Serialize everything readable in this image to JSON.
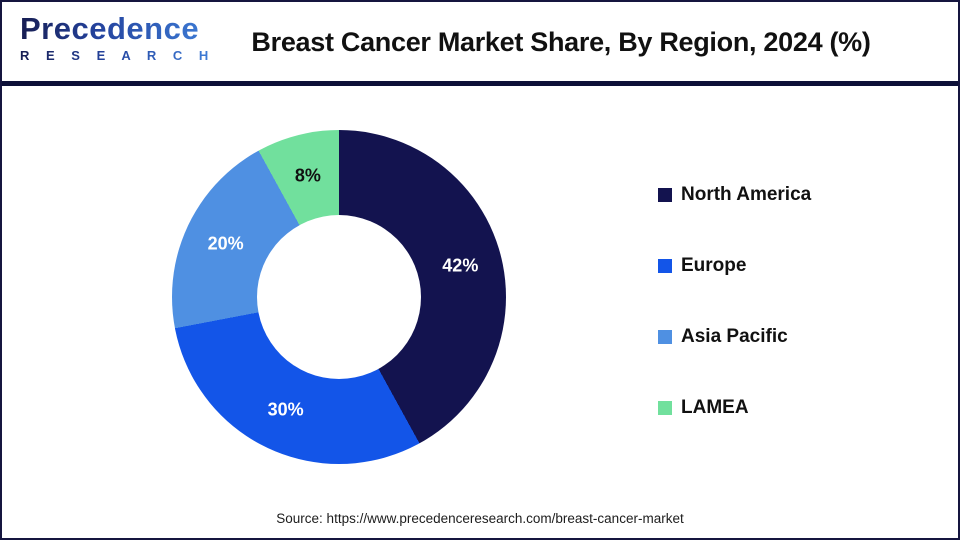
{
  "header": {
    "logo_word": "Precedence",
    "logo_sub": "R E S E A R C H",
    "title": "Breast Cancer Market Share, By Region, 2024 (%)"
  },
  "chart_data": {
    "type": "pie",
    "subtype": "donut",
    "title": "Breast Cancer Market Share, By Region, 2024 (%)",
    "categories": [
      "North America",
      "Europe",
      "Asia Pacific",
      "LAMEA"
    ],
    "values": [
      42,
      30,
      20,
      8
    ],
    "data_labels": [
      "42%",
      "30%",
      "20%",
      "8%"
    ],
    "colors": [
      "#13134F",
      "#1355E8",
      "#4F90E2",
      "#71E09D"
    ],
    "data_label_colors": [
      "#ffffff",
      "#ffffff",
      "#ffffff",
      "#111111"
    ],
    "start_angle_deg": 0,
    "direction": "clockwise",
    "donut_hole_ratio": 0.49,
    "legend_position": "right"
  },
  "footer": {
    "source": "Source: https://www.precedenceresearch.com/breast-cancer-market"
  },
  "theme": {
    "divider_color": "#0D1038",
    "border_color": "#15153F",
    "title_color": "#111111"
  }
}
